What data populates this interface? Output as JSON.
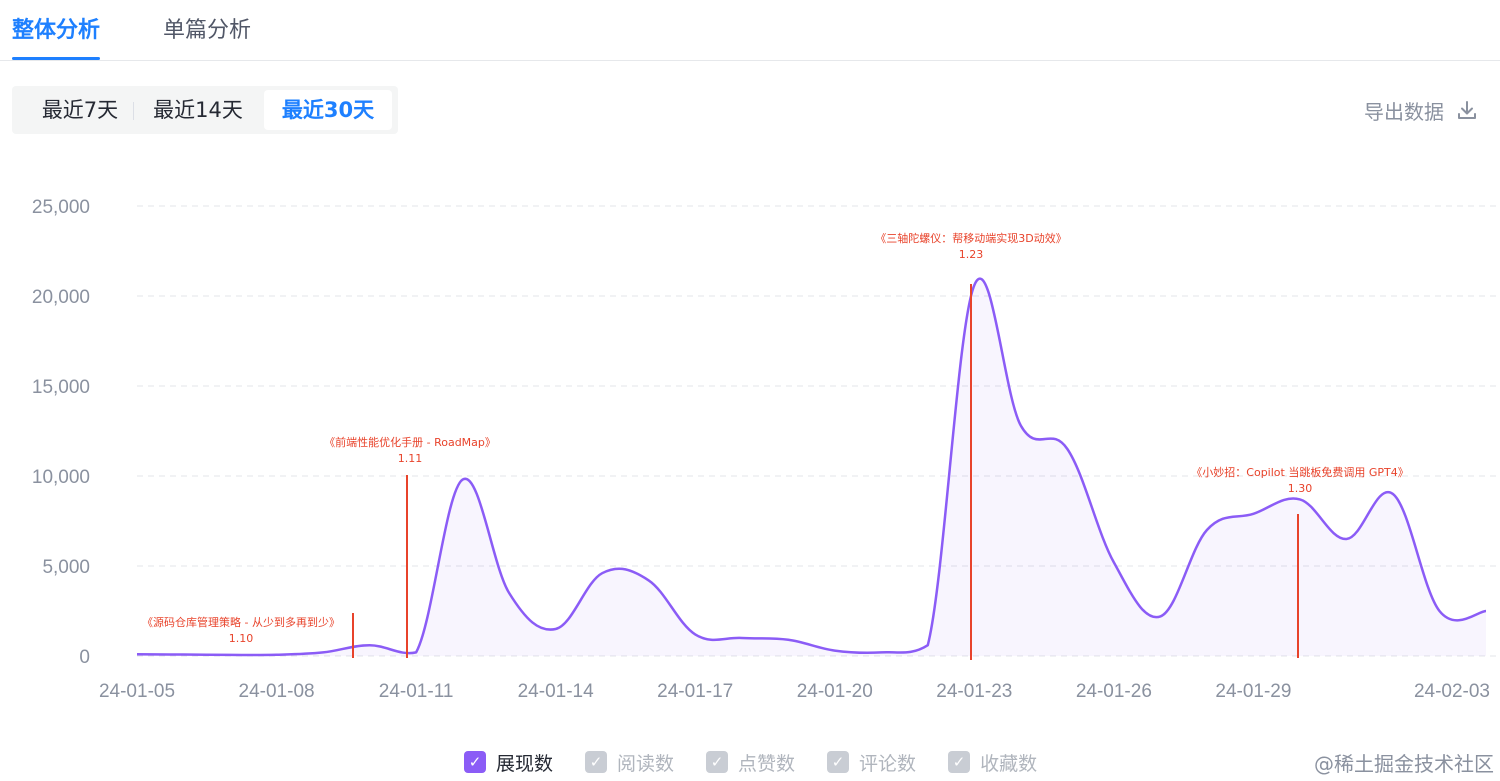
{
  "tabs": [
    {
      "label": "整体分析",
      "active": true
    },
    {
      "label": "单篇分析",
      "active": false
    }
  ],
  "range": [
    {
      "label": "最近7天",
      "active": false
    },
    {
      "label": "最近14天",
      "active": false
    },
    {
      "label": "最近30天",
      "active": true
    }
  ],
  "export": {
    "label": "导出数据",
    "icon": "download-icon"
  },
  "colors": {
    "accent": "#1e80ff",
    "line": "#8b5cf6",
    "annotation": "#e8432b",
    "checked": "#8b5cf6",
    "unchecked": "#c9cdd4"
  },
  "chart_data": {
    "type": "area",
    "ylim": [
      0,
      25000
    ],
    "y_ticks": [
      "25,000",
      "20,000",
      "15,000",
      "10,000",
      "5,000",
      "0"
    ],
    "x_tick_labels": [
      "24-01-05",
      "24-01-08",
      "24-01-11",
      "24-01-14",
      "24-01-17",
      "24-01-20",
      "24-01-23",
      "24-01-26",
      "24-01-29",
      "24-02-03"
    ],
    "grid": true,
    "series": [
      {
        "name": "展现数",
        "x": [
          "24-01-05",
          "24-01-06",
          "24-01-07",
          "24-01-08",
          "24-01-09",
          "24-01-10",
          "24-01-11",
          "24-01-12",
          "24-01-13",
          "24-01-14",
          "24-01-15",
          "24-01-16",
          "24-01-17",
          "24-01-18",
          "24-01-19",
          "24-01-20",
          "24-01-21",
          "24-01-22",
          "24-01-23",
          "24-01-24",
          "24-01-25",
          "24-01-26",
          "24-01-27",
          "24-01-28",
          "24-01-29",
          "24-01-30",
          "24-01-31",
          "24-02-01",
          "24-02-02",
          "24-02-03"
        ],
        "values": [
          100,
          80,
          60,
          70,
          200,
          600,
          200,
          9800,
          3500,
          1500,
          4600,
          4200,
          1200,
          1000,
          900,
          300,
          200,
          600,
          20600,
          12800,
          11500,
          5200,
          2200,
          7000,
          7900,
          8700,
          6500,
          9000,
          2500,
          2500
        ]
      }
    ],
    "annotations": [
      {
        "title": "《源码仓库管理策略 - 从少到多再到少》",
        "date": "1.10"
      },
      {
        "title": "《前端性能优化手册 - RoadMap》",
        "date": "1.11"
      },
      {
        "title": "《三轴陀螺仪：帮移动端实现3D动效》",
        "date": "1.23"
      },
      {
        "title": "《小妙招：Copilot 当跳板免费调用 GPT4》",
        "date": "1.30"
      }
    ]
  },
  "legend": [
    {
      "label": "展现数",
      "checked": true
    },
    {
      "label": "阅读数",
      "checked": false
    },
    {
      "label": "点赞数",
      "checked": false
    },
    {
      "label": "评论数",
      "checked": false
    },
    {
      "label": "收藏数",
      "checked": false
    }
  ],
  "watermark": "@稀土掘金技术社区"
}
